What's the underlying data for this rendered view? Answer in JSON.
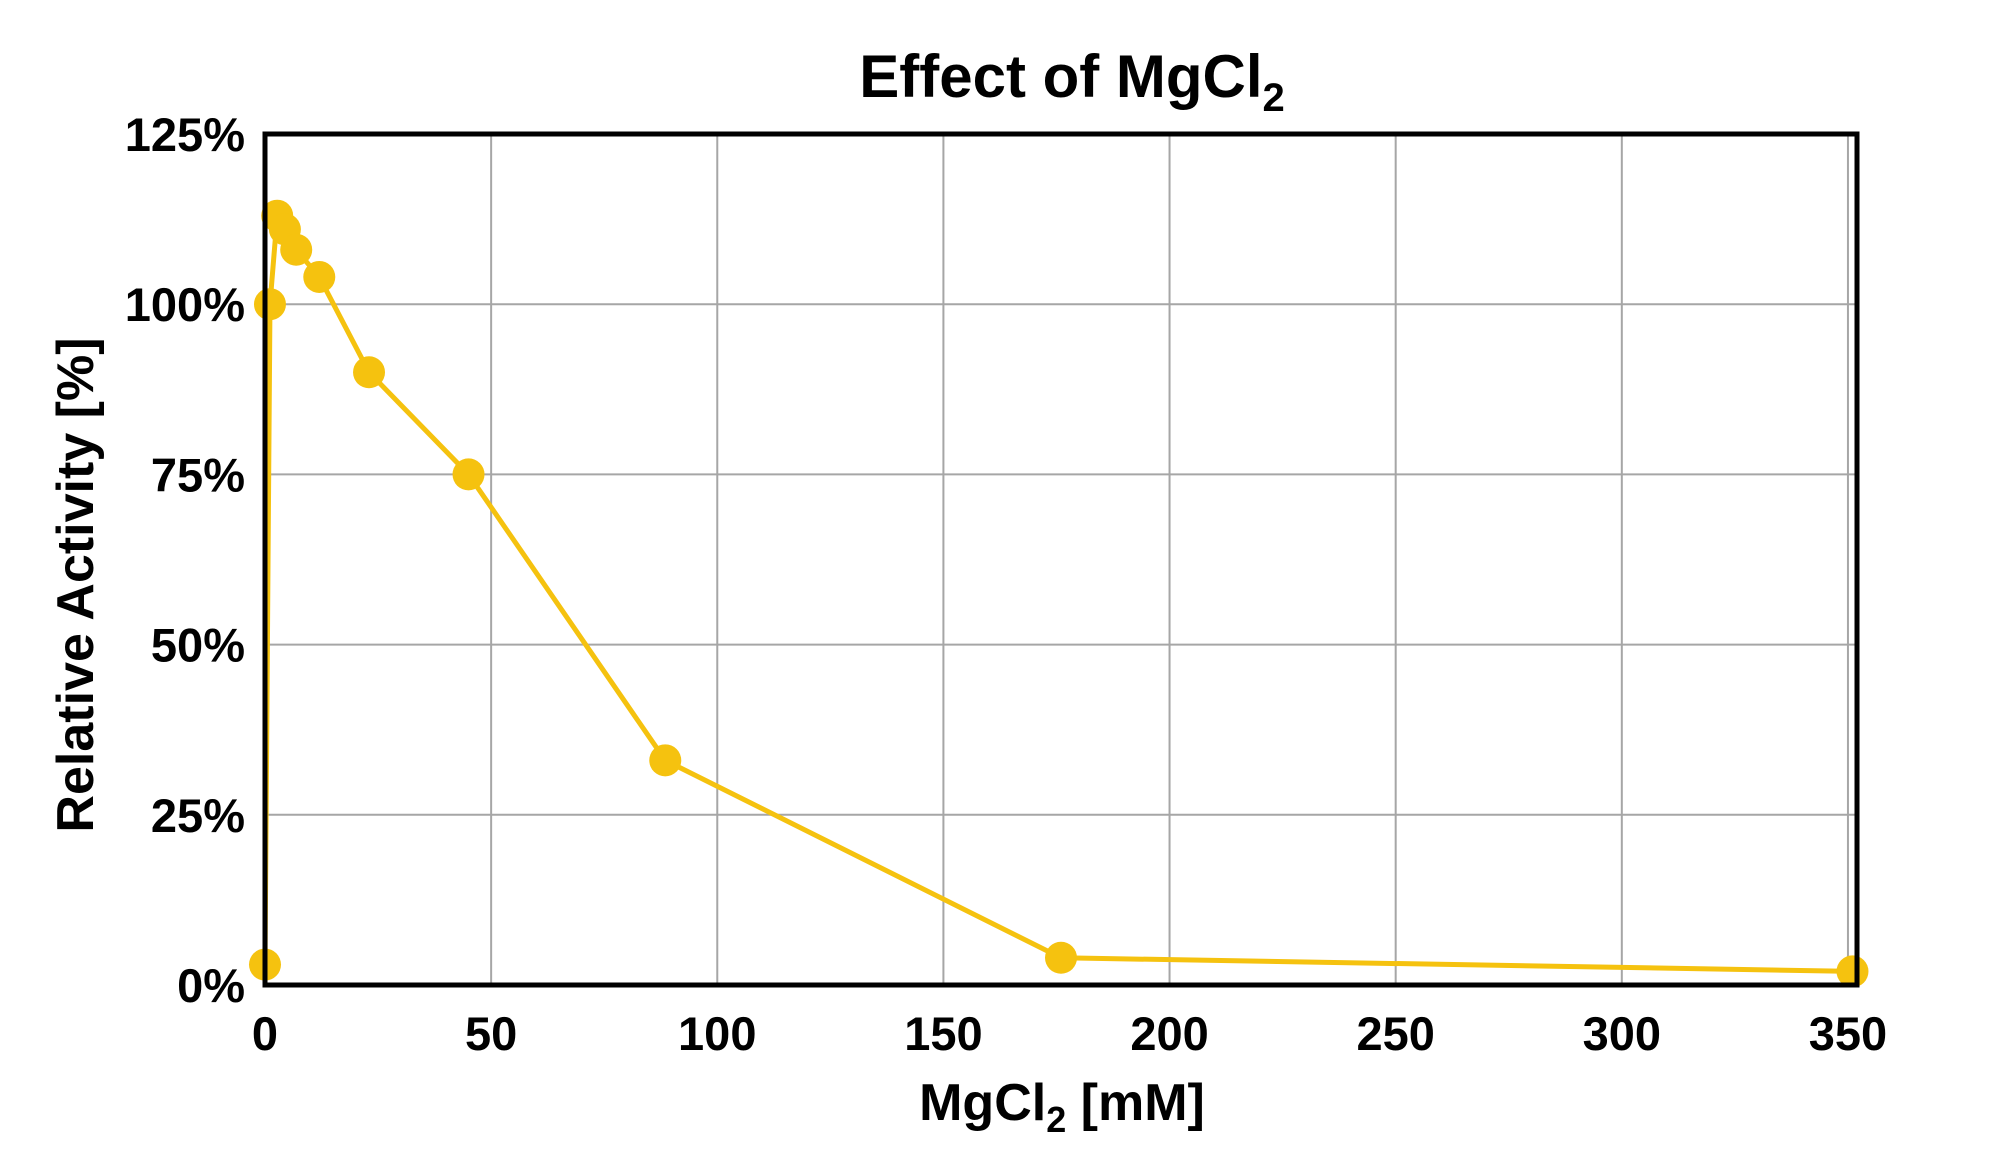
{
  "chart_data": {
    "type": "line",
    "title": {
      "main": "Effect of MgCl",
      "sub": "2"
    },
    "xlabel": {
      "pre": "MgCl",
      "sub": "2",
      "post": " [mM]"
    },
    "ylabel": "Relative Activity [%]",
    "xlim": [
      0,
      352
    ],
    "ylim": [
      0,
      125
    ],
    "x_ticks": [
      0,
      50,
      100,
      150,
      200,
      250,
      300,
      350
    ],
    "x_tick_labels": [
      "0",
      "50",
      "100",
      "150",
      "200",
      "250",
      "300",
      "350"
    ],
    "y_ticks": [
      0,
      25,
      50,
      75,
      100,
      125
    ],
    "y_tick_labels": [
      "0%",
      "25%",
      "50%",
      "75%",
      "100%",
      "125%"
    ],
    "grid": true,
    "legend": "none",
    "colors": {
      "series": "#F5C20F",
      "grid": "#A6A6A6",
      "frame": "#000000"
    },
    "series": [
      {
        "x": [
          0,
          1.1,
          2.7,
          4.4,
          6.9,
          12,
          23,
          45,
          88.5,
          176,
          351
        ],
        "y": [
          3,
          100,
          113,
          111,
          108,
          104,
          90,
          75,
          33,
          4,
          2
        ]
      }
    ]
  }
}
